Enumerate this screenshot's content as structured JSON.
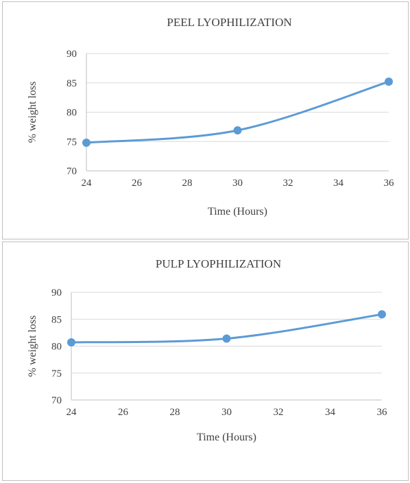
{
  "chart_data": [
    {
      "type": "line",
      "title": "PEEL LYOPHILIZATION",
      "xlabel": "Time (Hours)",
      "ylabel": "% weight loss",
      "xlim": [
        24,
        36
      ],
      "ylim": [
        70,
        90
      ],
      "xticks": [
        "24",
        "26",
        "28",
        "30",
        "32",
        "34",
        "36"
      ],
      "yticks": [
        "70",
        "75",
        "80",
        "85",
        "90"
      ],
      "grid": true,
      "series": [
        {
          "x": [
            24,
            30,
            36
          ],
          "values": [
            74.8,
            76.9,
            85.2
          ],
          "color": "#5b9bd5"
        }
      ]
    },
    {
      "type": "line",
      "title": "PULP LYOPHILIZATION",
      "xlabel": "Time (Hours)",
      "ylabel": "% weight loss",
      "xlim": [
        24,
        36
      ],
      "ylim": [
        70,
        90
      ],
      "xticks": [
        "24",
        "26",
        "28",
        "30",
        "32",
        "34",
        "36"
      ],
      "yticks": [
        "70",
        "75",
        "80",
        "85",
        "90"
      ],
      "grid": true,
      "series": [
        {
          "x": [
            24,
            30,
            36
          ],
          "values": [
            80.7,
            81.4,
            85.9
          ],
          "color": "#5b9bd5"
        }
      ]
    }
  ]
}
